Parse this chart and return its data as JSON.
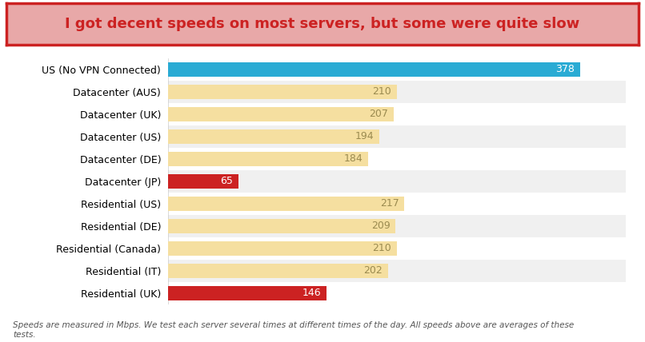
{
  "title": "I got decent speeds on most servers, but some were quite slow",
  "categories": [
    "US (No VPN Connected)",
    "Datacenter (AUS)",
    "Datacenter (UK)",
    "Datacenter (US)",
    "Datacenter (DE)",
    "Datacenter (JP)",
    "Residential (US)",
    "Residential (DE)",
    "Residential (Canada)",
    "Residential (IT)",
    "Residential (UK)"
  ],
  "values": [
    378,
    210,
    207,
    194,
    184,
    65,
    217,
    209,
    210,
    202,
    146
  ],
  "bar_colors": [
    "#29ABD4",
    "#F5DFA0",
    "#F5DFA0",
    "#F5DFA0",
    "#F5DFA0",
    "#CC2222",
    "#F5DFA0",
    "#F5DFA0",
    "#F5DFA0",
    "#F5DFA0",
    "#CC2222"
  ],
  "value_label_colors": [
    "#ffffff",
    "#9B8B50",
    "#9B8B50",
    "#9B8B50",
    "#9B8B50",
    "#ffffff",
    "#9B8B50",
    "#9B8B50",
    "#9B8B50",
    "#9B8B50",
    "#ffffff"
  ],
  "row_bg_colors": [
    "#ffffff",
    "#f0f0f0",
    "#ffffff",
    "#f0f0f0",
    "#ffffff",
    "#f0f0f0",
    "#ffffff",
    "#f0f0f0",
    "#ffffff",
    "#f0f0f0",
    "#ffffff"
  ],
  "xlim": [
    0,
    420
  ],
  "title_bg_color": "#E8A8A8",
  "title_border_color": "#CC2222",
  "title_text_color": "#CC2222",
  "footnote": "Speeds are measured in Mbps. We test each server several times at different times of the day. All speeds above are averages of these\ntests.",
  "background_color": "#ffffff",
  "label_fontsize": 9,
  "value_fontsize": 9,
  "title_fontsize": 13
}
